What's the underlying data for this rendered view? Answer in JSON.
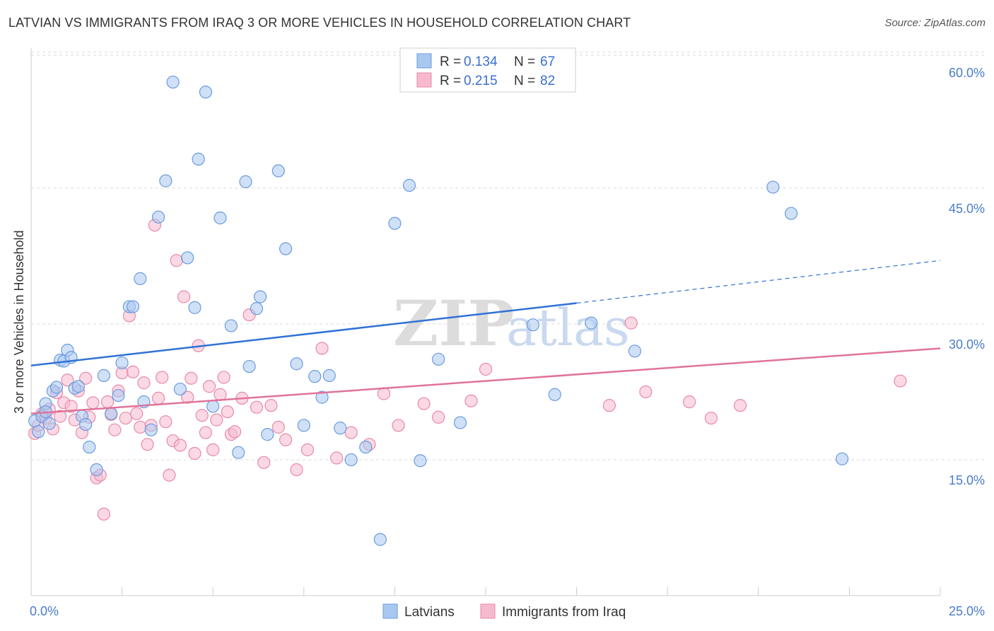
{
  "header": {
    "title": "LATVIAN VS IMMIGRANTS FROM IRAQ 3 OR MORE VEHICLES IN HOUSEHOLD CORRELATION CHART",
    "source": "Source: ZipAtlas.com"
  },
  "watermark": {
    "zip": "ZIP",
    "atlas": "atlas"
  },
  "colors": {
    "blue_fill": "#a9c8f0",
    "blue_stroke": "#6a9be0",
    "blue_line": "#2f72d6",
    "pink_fill": "#f7b9cd",
    "pink_stroke": "#e889a8",
    "pink_line": "#e0739a",
    "tick_text": "#4a7cc9",
    "grid": "#d9d9d9"
  },
  "chart_data": {
    "type": "scatter",
    "title": "LATVIAN VS IMMIGRANTS FROM IRAQ 3 OR MORE VEHICLES IN HOUSEHOLD CORRELATION CHART",
    "xlabel": "",
    "ylabel": "3 or more Vehicles in Household",
    "xlim": [
      0,
      25
    ],
    "ylim": [
      0,
      61
    ],
    "x_tick_labels": [
      "0.0%",
      "25.0%"
    ],
    "y_ticks": [
      {
        "value": 60,
        "label": "60.0%"
      },
      {
        "value": 45,
        "label": "45.0%"
      },
      {
        "value": 30,
        "label": "30.0%"
      },
      {
        "value": 15,
        "label": "15.0%"
      }
    ],
    "legend": [
      {
        "name": "Latvians",
        "r_label": "R =",
        "r_value": "0.134",
        "n_label": "N =",
        "n_value": "67"
      },
      {
        "name": "Immigrants from Iraq",
        "r_label": "R =",
        "r_value": "0.215",
        "n_label": "N =",
        "n_value": "82"
      }
    ],
    "series": [
      {
        "name": "Latvians",
        "color": "#a9c8f0",
        "trend": {
          "x0": 0,
          "y0": 25.4,
          "x1": 15,
          "y1": 32.3,
          "dashed_to_x": 25,
          "dashed_to_y": 37.0
        },
        "points": [
          [
            0.1,
            19.3
          ],
          [
            0.2,
            18.1
          ],
          [
            0.3,
            19.8
          ],
          [
            0.4,
            21.2
          ],
          [
            0.4,
            20.3
          ],
          [
            0.5,
            19.0
          ],
          [
            0.6,
            22.6
          ],
          [
            0.7,
            23.0
          ],
          [
            0.8,
            26.0
          ],
          [
            0.9,
            25.9
          ],
          [
            1.0,
            27.1
          ],
          [
            1.1,
            26.3
          ],
          [
            1.2,
            22.9
          ],
          [
            1.3,
            23.1
          ],
          [
            1.4,
            19.8
          ],
          [
            1.5,
            18.9
          ],
          [
            1.6,
            16.4
          ],
          [
            1.8,
            13.9
          ],
          [
            2.0,
            24.3
          ],
          [
            2.2,
            20.1
          ],
          [
            2.4,
            22.1
          ],
          [
            2.5,
            25.7
          ],
          [
            2.7,
            31.9
          ],
          [
            2.8,
            31.9
          ],
          [
            3.0,
            35.0
          ],
          [
            3.1,
            21.4
          ],
          [
            3.3,
            18.3
          ],
          [
            3.5,
            41.8
          ],
          [
            3.7,
            45.8
          ],
          [
            3.9,
            56.7
          ],
          [
            4.1,
            22.8
          ],
          [
            4.3,
            37.3
          ],
          [
            4.5,
            31.8
          ],
          [
            4.6,
            48.2
          ],
          [
            4.8,
            55.6
          ],
          [
            5.0,
            20.9
          ],
          [
            5.2,
            41.7
          ],
          [
            5.5,
            29.8
          ],
          [
            5.7,
            15.8
          ],
          [
            5.9,
            45.7
          ],
          [
            6.0,
            25.3
          ],
          [
            6.2,
            31.7
          ],
          [
            6.3,
            33.0
          ],
          [
            6.5,
            17.8
          ],
          [
            6.8,
            46.9
          ],
          [
            7.0,
            38.3
          ],
          [
            7.3,
            25.6
          ],
          [
            7.5,
            18.8
          ],
          [
            7.8,
            24.2
          ],
          [
            8.0,
            21.9
          ],
          [
            8.2,
            24.3
          ],
          [
            8.5,
            18.5
          ],
          [
            8.8,
            15.0
          ],
          [
            9.2,
            16.4
          ],
          [
            9.6,
            6.2
          ],
          [
            10.0,
            41.1
          ],
          [
            10.4,
            45.3
          ],
          [
            10.7,
            14.9
          ],
          [
            11.2,
            26.1
          ],
          [
            11.8,
            19.1
          ],
          [
            13.8,
            29.9
          ],
          [
            14.4,
            22.2
          ],
          [
            15.4,
            30.1
          ],
          [
            16.6,
            27.0
          ],
          [
            20.4,
            45.1
          ],
          [
            20.9,
            42.2
          ],
          [
            22.3,
            15.1
          ]
        ]
      },
      {
        "name": "Immigrants from Iraq",
        "color": "#f7b9cd",
        "trend": {
          "x0": 0,
          "y0": 20.1,
          "x1": 25,
          "y1": 27.3
        },
        "points": [
          [
            0.1,
            17.9
          ],
          [
            0.2,
            18.8
          ],
          [
            0.3,
            20.1
          ],
          [
            0.4,
            19.6
          ],
          [
            0.5,
            20.6
          ],
          [
            0.6,
            18.4
          ],
          [
            0.7,
            22.4
          ],
          [
            0.8,
            19.8
          ],
          [
            0.9,
            21.3
          ],
          [
            1.0,
            23.8
          ],
          [
            1.1,
            20.9
          ],
          [
            1.2,
            19.4
          ],
          [
            1.3,
            22.6
          ],
          [
            1.4,
            18.0
          ],
          [
            1.5,
            24.0
          ],
          [
            1.6,
            19.7
          ],
          [
            1.7,
            21.3
          ],
          [
            1.8,
            13.0
          ],
          [
            1.9,
            13.3
          ],
          [
            2.0,
            9.0
          ],
          [
            2.1,
            21.4
          ],
          [
            2.2,
            20.0
          ],
          [
            2.3,
            18.3
          ],
          [
            2.4,
            22.6
          ],
          [
            2.5,
            24.6
          ],
          [
            2.6,
            19.6
          ],
          [
            2.7,
            30.9
          ],
          [
            2.8,
            24.7
          ],
          [
            2.9,
            20.1
          ],
          [
            3.0,
            18.6
          ],
          [
            3.1,
            23.5
          ],
          [
            3.2,
            16.7
          ],
          [
            3.3,
            18.8
          ],
          [
            3.4,
            40.9
          ],
          [
            3.5,
            21.8
          ],
          [
            3.6,
            24.1
          ],
          [
            3.7,
            19.2
          ],
          [
            3.8,
            13.3
          ],
          [
            3.9,
            17.1
          ],
          [
            4.0,
            37.0
          ],
          [
            4.1,
            16.6
          ],
          [
            4.2,
            33.0
          ],
          [
            4.3,
            21.9
          ],
          [
            4.4,
            24.0
          ],
          [
            4.5,
            15.7
          ],
          [
            4.6,
            27.6
          ],
          [
            4.7,
            19.9
          ],
          [
            4.8,
            18.0
          ],
          [
            4.9,
            23.1
          ],
          [
            5.0,
            16.1
          ],
          [
            5.1,
            19.4
          ],
          [
            5.2,
            22.2
          ],
          [
            5.3,
            24.1
          ],
          [
            5.4,
            20.3
          ],
          [
            5.5,
            17.8
          ],
          [
            5.6,
            18.1
          ],
          [
            5.8,
            21.8
          ],
          [
            6.0,
            31.0
          ],
          [
            6.2,
            20.8
          ],
          [
            6.4,
            14.7
          ],
          [
            6.6,
            21.0
          ],
          [
            6.8,
            18.6
          ],
          [
            7.0,
            17.2
          ],
          [
            7.3,
            13.9
          ],
          [
            7.6,
            16.1
          ],
          [
            8.0,
            27.3
          ],
          [
            8.4,
            15.2
          ],
          [
            8.8,
            18.0
          ],
          [
            9.3,
            16.7
          ],
          [
            9.7,
            22.3
          ],
          [
            10.1,
            18.8
          ],
          [
            10.8,
            21.2
          ],
          [
            11.2,
            19.7
          ],
          [
            12.1,
            21.5
          ],
          [
            12.5,
            25.0
          ],
          [
            15.9,
            21.0
          ],
          [
            16.5,
            30.1
          ],
          [
            16.9,
            22.5
          ],
          [
            18.1,
            21.4
          ],
          [
            18.7,
            19.6
          ],
          [
            19.5,
            21.0
          ],
          [
            23.9,
            23.7
          ]
        ]
      }
    ]
  }
}
